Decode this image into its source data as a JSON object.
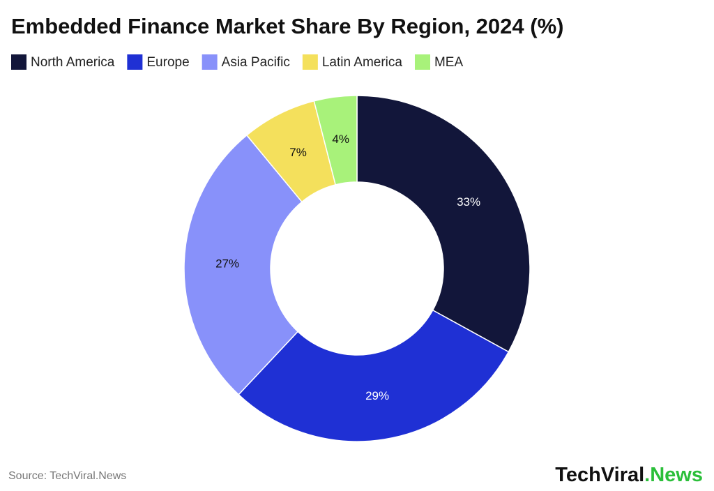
{
  "chart_data": {
    "type": "donut",
    "title": "Embedded Finance Market Share By Region, 2024 (%)",
    "categories": [
      "North America",
      "Europe",
      "Asia Pacific",
      "Latin America",
      "MEA"
    ],
    "values": [
      33,
      29,
      27,
      7,
      4
    ],
    "value_labels": [
      "33%",
      "29%",
      "27%",
      "7%",
      "4%"
    ],
    "colors": [
      "#12163a",
      "#1f30d4",
      "#8891fa",
      "#f4e05c",
      "#a8f27a"
    ],
    "legend": "top-left",
    "source": "Source: TechViral.News",
    "logo": [
      "TechViral",
      ".News"
    ]
  }
}
